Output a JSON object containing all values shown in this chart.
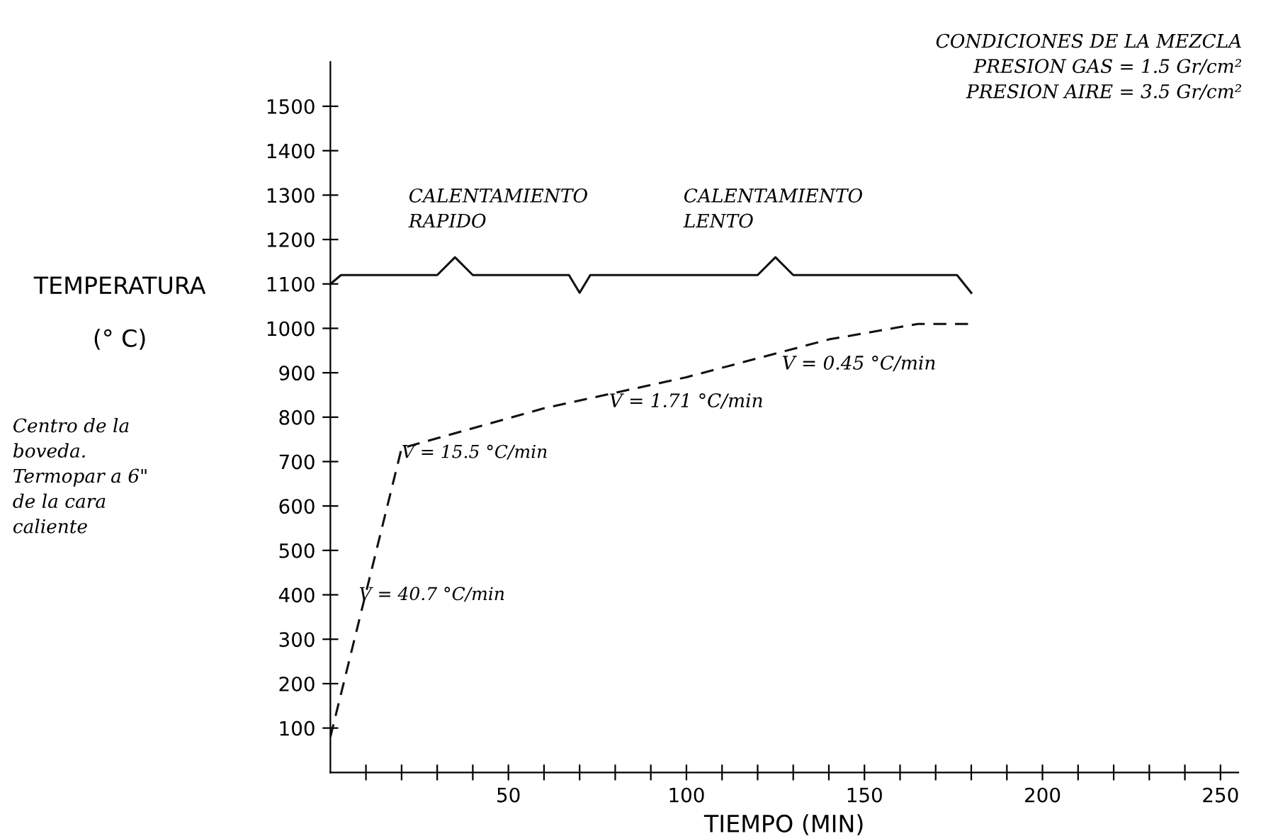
{
  "chart_data": {
    "type": "line",
    "xlabel": "TIEMPO (MIN)",
    "ylabel": "TEMPERATURA\n\n(° C)",
    "x": [
      0,
      20,
      60,
      100,
      140,
      165,
      180
    ],
    "series": [
      {
        "color": "#111111",
        "values": [
          80,
          730,
          820,
          890,
          975,
          1010,
          1010
        ],
        "line_style": "dashed",
        "marker": "none"
      },
      {
        "color": "#111111",
        "x": [
          0,
          3,
          30,
          35,
          40,
          67,
          70,
          73,
          120,
          125,
          130,
          176,
          180
        ],
        "values": [
          1100,
          1120,
          1120,
          1160,
          1120,
          1120,
          1080,
          1120,
          1120,
          1160,
          1120,
          1120,
          1080
        ],
        "line_style": "solid",
        "marker": "none"
      }
    ],
    "xlim": [
      0,
      255
    ],
    "ylim": [
      0,
      1600
    ],
    "xticks": [
      {
        "value": 10,
        "label": null
      },
      {
        "value": 20,
        "label": null
      },
      {
        "value": 30,
        "label": null
      },
      {
        "value": 40,
        "label": null
      },
      50,
      {
        "value": 60,
        "label": null
      },
      {
        "value": 70,
        "label": null
      },
      {
        "value": 80,
        "label": null
      },
      {
        "value": 90,
        "label": null
      },
      100,
      {
        "value": 110,
        "label": null
      },
      {
        "value": 120,
        "label": null
      },
      {
        "value": 130,
        "label": null
      },
      {
        "value": 140,
        "label": null
      },
      150,
      {
        "value": 160,
        "label": null
      },
      {
        "value": 170,
        "label": null
      },
      {
        "value": 180,
        "label": null
      },
      {
        "value": 190,
        "label": null
      },
      200,
      {
        "value": 210,
        "label": null
      },
      {
        "value": 220,
        "label": null
      },
      {
        "value": 230,
        "label": null
      },
      {
        "value": 240,
        "label": null
      },
      250
    ],
    "yticks": [
      100,
      200,
      300,
      400,
      500,
      600,
      700,
      800,
      900,
      1000,
      1100,
      1200,
      1300,
      1400,
      1500
    ],
    "grid": false,
    "annotations": [
      {
        "text": "V = 40.7 °C/min",
        "x": 8,
        "y": 380
      },
      {
        "text": "V = 15.5 °C/min",
        "x": 20,
        "y": 700
      },
      "V = 1.71 °C/min",
      "V = 0.45 °C/min",
      "CALENTAMIENTO\nRAPIDO",
      "CALENTAMIENTO\nLENTO",
      "CONDICIONES DE LA MEZCLA\n  PRESION GAS = 1.5 Gr/cm²\n  PRESION AIRE = 3.5 Gr/cm²",
      "Centro de la\nboveda.\nTermopar a 6\"\nde la cara\ncaliente"
    ]
  }
}
